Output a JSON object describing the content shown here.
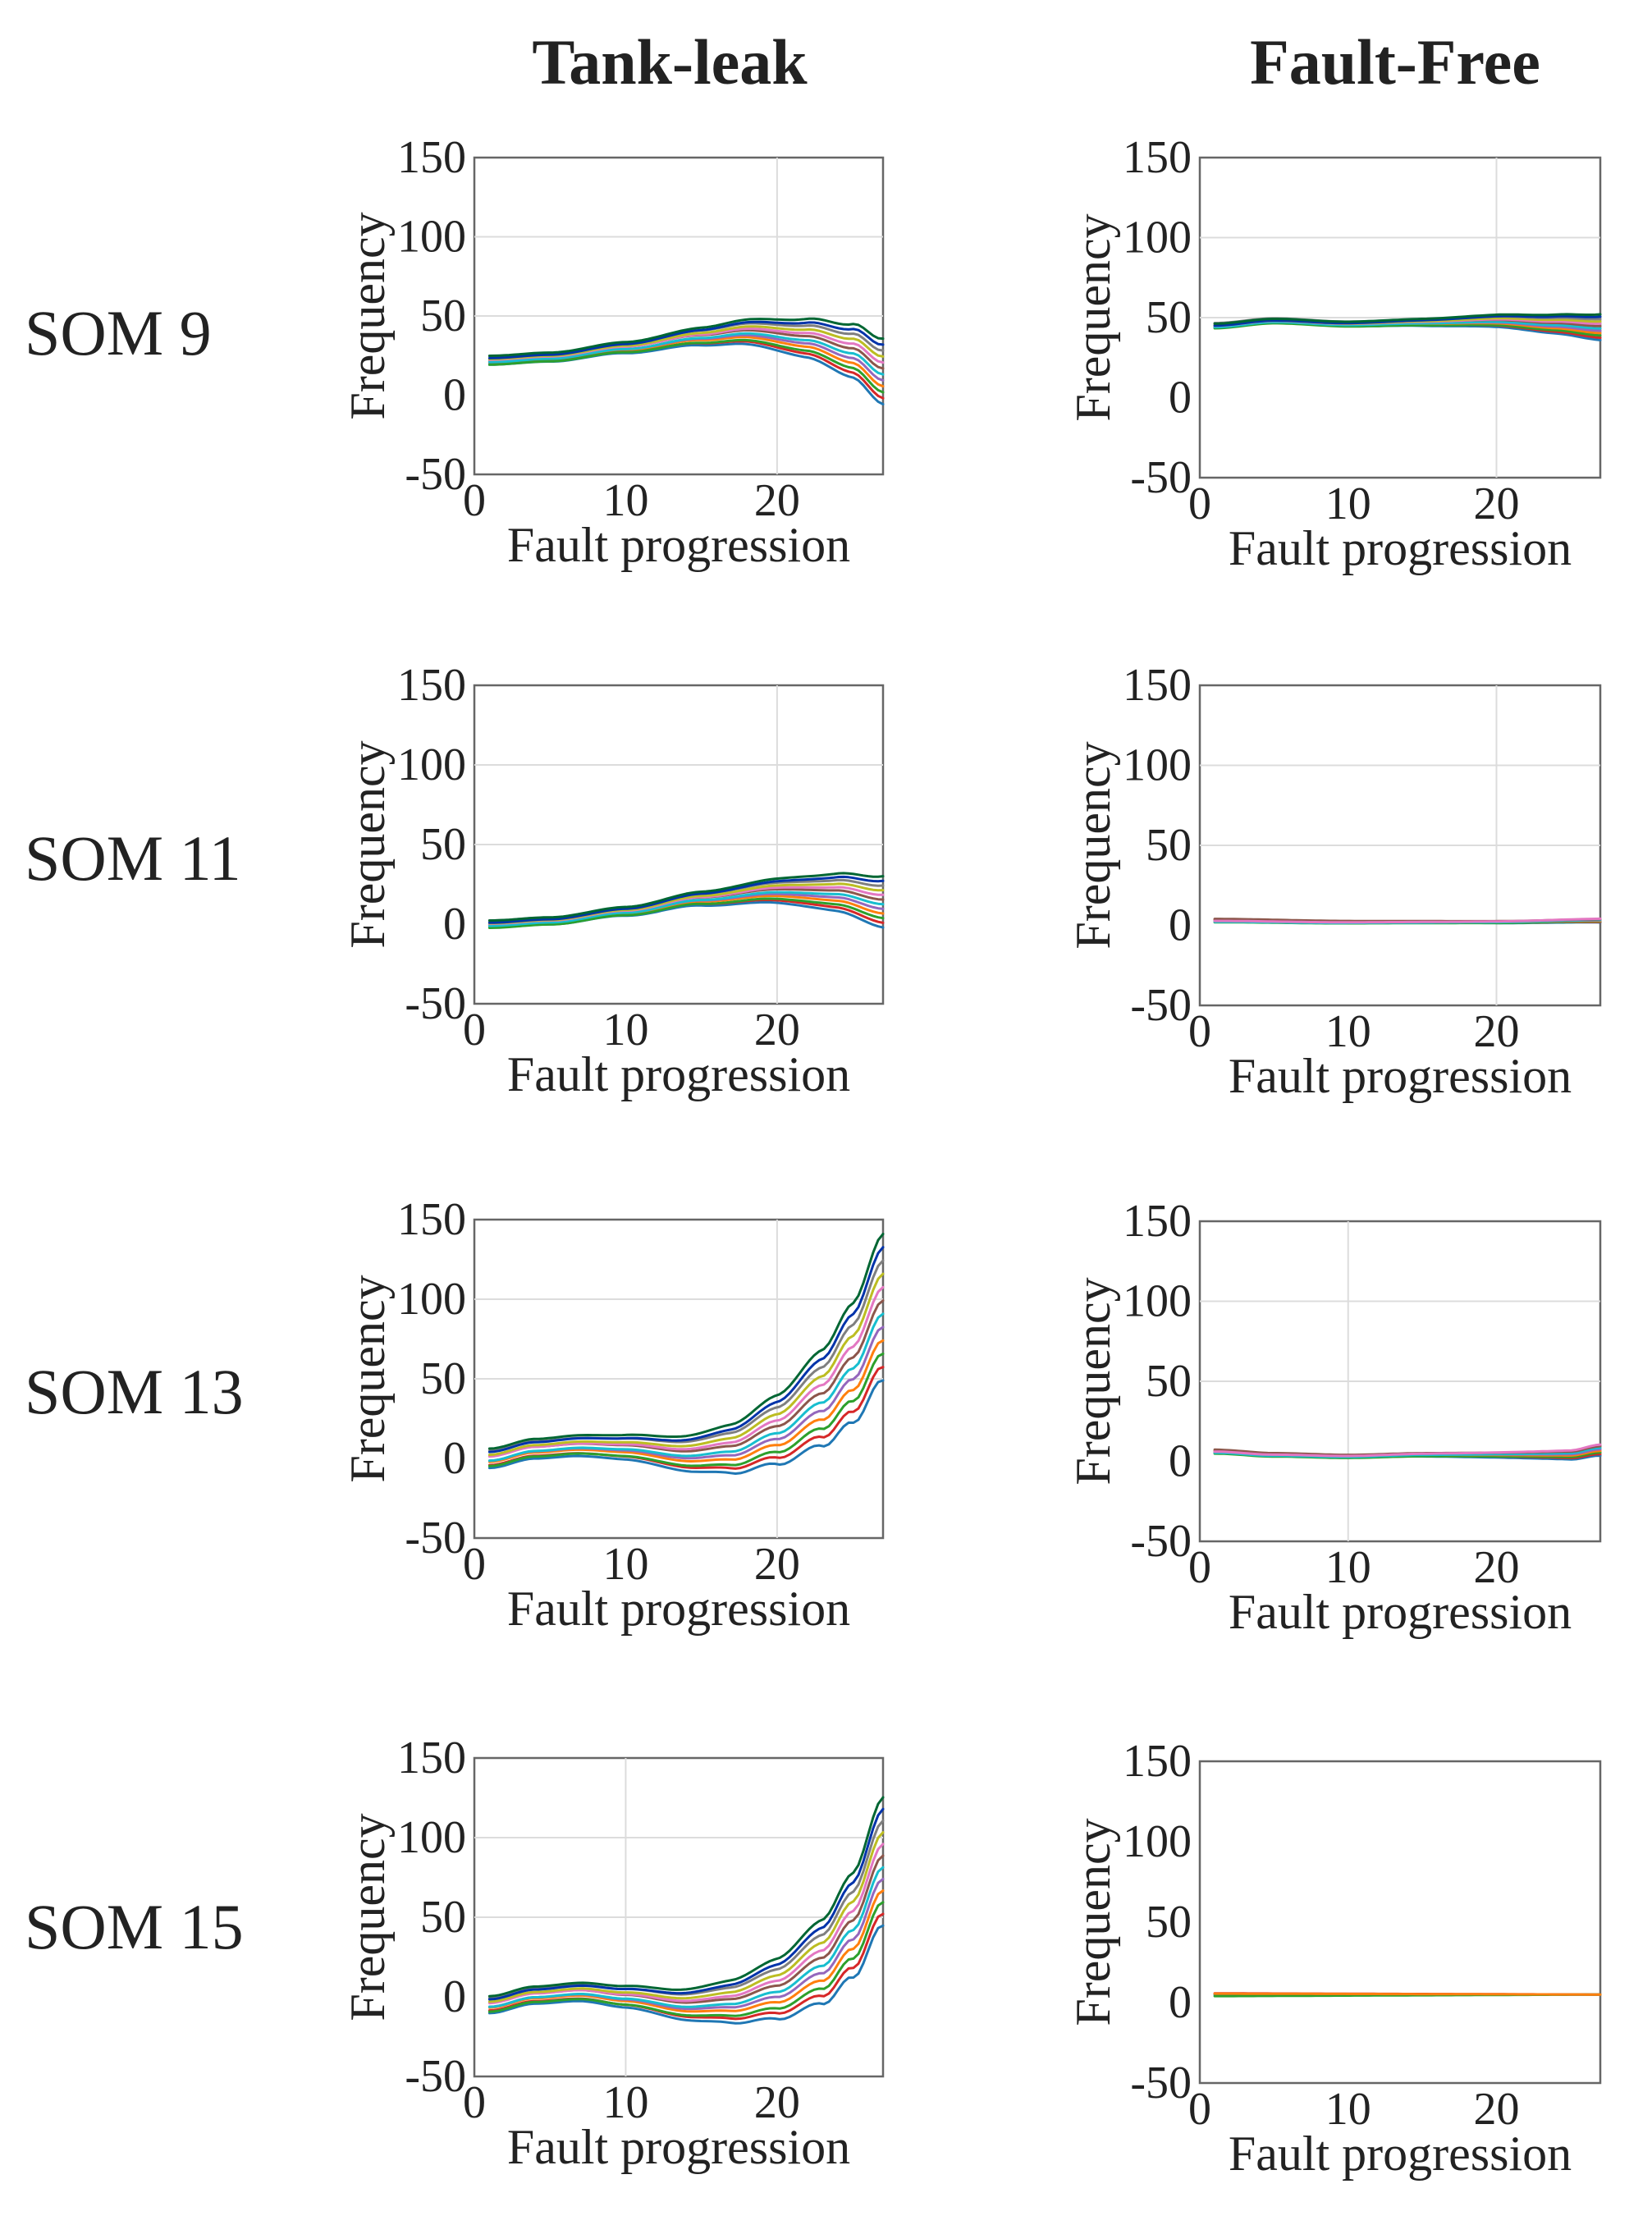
{
  "column_titles": [
    "Tank-leak",
    "Fault-Free"
  ],
  "row_labels": [
    "SOM 9",
    "SOM 11",
    "SOM 13",
    "SOM 15"
  ],
  "series_colors": [
    "#1f77b4",
    "#d62728",
    "#2ca02c",
    "#ff7f0e",
    "#9467bd",
    "#17becf",
    "#8c564b",
    "#e377c2",
    "#bcbd22",
    "#7f7f7f",
    "#0033aa",
    "#006633"
  ],
  "chart_data": [
    {
      "id": "som9-tank-leak",
      "type": "line",
      "xlabel": "Fault progression",
      "ylabel": "Frequency",
      "xlim": [
        0,
        27
      ],
      "ylim": [
        -50,
        150
      ],
      "xticks": [
        0,
        10,
        20
      ],
      "yticks": [
        -50,
        0,
        50,
        100,
        150
      ],
      "grid_x": [
        20
      ],
      "grid_y": [
        50,
        100
      ],
      "n_series": 12,
      "anchors": {
        "x": [
          1,
          5,
          10,
          15,
          18,
          22,
          25,
          27
        ],
        "y": [
          22,
          24,
          30,
          37,
          40,
          36,
          28,
          15
        ]
      },
      "spread_end": 18
    },
    {
      "id": "som9-fault-free",
      "type": "line",
      "xlabel": "Fault progression",
      "ylabel": "Frequency",
      "xlim": [
        0,
        27
      ],
      "ylim": [
        -50,
        150
      ],
      "xticks": [
        0,
        10,
        20
      ],
      "yticks": [
        -50,
        0,
        50,
        100,
        150
      ],
      "grid_x": [
        20
      ],
      "grid_y": [
        50,
        100
      ],
      "n_series": 12,
      "anchors": {
        "x": [
          1,
          5,
          10,
          15,
          20,
          24,
          27
        ],
        "y": [
          45,
          48,
          46,
          47,
          48,
          46,
          44
        ]
      },
      "spread_end": 7
    },
    {
      "id": "som11-tank-leak",
      "type": "line",
      "xlabel": "Fault progression",
      "ylabel": "Frequency",
      "xlim": [
        0,
        27
      ],
      "ylim": [
        -50,
        150
      ],
      "xticks": [
        0,
        10,
        20
      ],
      "yticks": [
        -50,
        0,
        50,
        100,
        150
      ],
      "grid_x": [
        20
      ],
      "grid_y": [
        50,
        100
      ],
      "n_series": 12,
      "anchors": {
        "x": [
          1,
          5,
          10,
          15,
          20,
          24,
          27
        ],
        "y": [
          0,
          2,
          8,
          16,
          21,
          20,
          14
        ]
      },
      "spread_end": 14
    },
    {
      "id": "som11-fault-free",
      "type": "line",
      "xlabel": "Fault progression",
      "ylabel": "Frequency",
      "xlim": [
        0,
        27
      ],
      "ylim": [
        -50,
        150
      ],
      "xticks": [
        0,
        10,
        20
      ],
      "yticks": [
        -50,
        0,
        50,
        100,
        150
      ],
      "grid_x": [
        20
      ],
      "grid_y": [
        50,
        100
      ],
      "n_series": 8,
      "anchors": {
        "x": [
          1,
          10,
          20,
          27
        ],
        "y": [
          3,
          2,
          2,
          3
        ]
      },
      "spread_end": 1
    },
    {
      "id": "som13-tank-leak",
      "type": "line",
      "xlabel": "Fault progression",
      "ylabel": "Frequency",
      "xlim": [
        0,
        27
      ],
      "ylim": [
        -50,
        150
      ],
      "xticks": [
        0,
        10,
        20
      ],
      "yticks": [
        -50,
        0,
        50,
        100,
        150
      ],
      "grid_x": [
        20
      ],
      "grid_y": [
        50,
        100
      ],
      "n_series": 12,
      "anchors": {
        "x": [
          1,
          4,
          7,
          10,
          14,
          17,
          20,
          23,
          25,
          27
        ],
        "y": [
          0,
          6,
          8,
          7,
          3,
          6,
          18,
          38,
          60,
          95
        ]
      },
      "spread_end": 40
    },
    {
      "id": "som13-fault-free",
      "type": "line",
      "xlabel": "Fault progression",
      "ylabel": "Frequency",
      "xlim": [
        0,
        27
      ],
      "ylim": [
        -50,
        150
      ],
      "xticks": [
        0,
        10,
        20
      ],
      "yticks": [
        -50,
        0,
        50,
        100,
        150
      ],
      "grid_x": [
        10
      ],
      "grid_y": [
        50,
        100
      ],
      "n_series": 8,
      "anchors": {
        "x": [
          1,
          5,
          10,
          15,
          20,
          25,
          27
        ],
        "y": [
          6,
          4,
          3,
          4,
          4,
          4,
          7
        ]
      },
      "spread_end": 3
    },
    {
      "id": "som15-tank-leak",
      "type": "line",
      "xlabel": "Fault progression",
      "ylabel": "Frequency",
      "xlim": [
        0,
        27
      ],
      "ylim": [
        -50,
        150
      ],
      "xticks": [
        0,
        10,
        20
      ],
      "yticks": [
        -50,
        0,
        50,
        100,
        150
      ],
      "grid_x": [
        10
      ],
      "grid_y": [
        50,
        100
      ],
      "n_series": 12,
      "anchors": {
        "x": [
          1,
          4,
          7,
          10,
          14,
          17,
          20,
          23,
          25,
          27
        ],
        "y": [
          -5,
          1,
          3,
          0,
          -5,
          -3,
          5,
          22,
          45,
          85
        ]
      },
      "spread_end": 35
    },
    {
      "id": "som15-fault-free",
      "type": "line",
      "xlabel": "Fault progression",
      "ylabel": "Frequency",
      "xlim": [
        0,
        27
      ],
      "ylim": [
        -50,
        150
      ],
      "xticks": [
        0,
        10,
        20
      ],
      "yticks": [
        -50,
        0,
        50,
        100,
        150
      ],
      "grid_x": [],
      "grid_y": [],
      "n_series": 4,
      "anchors": {
        "x": [
          1,
          27
        ],
        "y": [
          5,
          5
        ]
      },
      "spread_end": 0
    }
  ]
}
